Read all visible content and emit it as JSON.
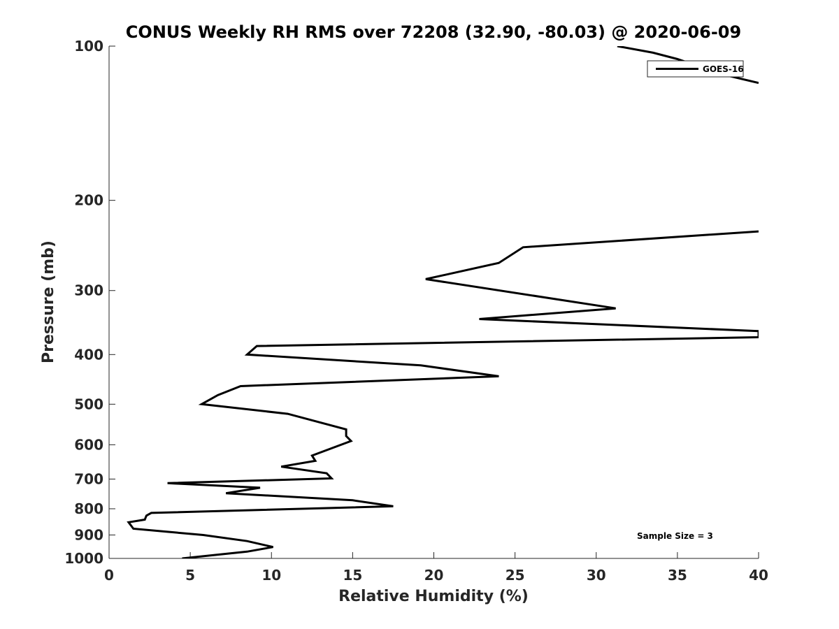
{
  "chart_data": {
    "type": "line",
    "title": "CONUS Weekly RH RMS over 72208 (32.90, -80.03) @ 2020-06-09",
    "xlabel": "Relative Humidity (%)",
    "ylabel": "Pressure (mb)",
    "xlim": [
      0,
      40
    ],
    "ylim": [
      100,
      1000
    ],
    "yscale": "log",
    "y_reversed": true,
    "xticks": [
      0,
      5,
      10,
      15,
      20,
      25,
      30,
      35,
      40
    ],
    "yticks": [
      100,
      200,
      300,
      400,
      500,
      600,
      700,
      800,
      900,
      1000
    ],
    "grid": false,
    "legend_position": "top-right",
    "annotation": "Sample Size = 3",
    "line_color": "#000000",
    "series": [
      {
        "name": "GOES-16",
        "points": [
          [
            4.5,
            1000
          ],
          [
            8.5,
            970
          ],
          [
            10.1,
            950
          ],
          [
            8.5,
            925
          ],
          [
            5.8,
            900
          ],
          [
            1.5,
            875
          ],
          [
            1.2,
            850
          ],
          [
            2.2,
            840
          ],
          [
            2.3,
            825
          ],
          [
            2.6,
            815
          ],
          [
            17.5,
            791
          ],
          [
            15.0,
            770
          ],
          [
            7.2,
            746
          ],
          [
            9.3,
            728
          ],
          [
            3.6,
            713
          ],
          [
            13.7,
            698
          ],
          [
            13.4,
            682
          ],
          [
            10.6,
            662
          ],
          [
            12.7,
            645
          ],
          [
            12.5,
            630
          ],
          [
            14.9,
            590
          ],
          [
            14.6,
            577
          ],
          [
            14.6,
            560
          ],
          [
            11.0,
            522
          ],
          [
            5.7,
            500
          ],
          [
            6.7,
            480
          ],
          [
            8.1,
            461
          ],
          [
            24.0,
            441
          ],
          [
            19.2,
            420
          ],
          [
            8.5,
            400
          ],
          [
            9.1,
            385
          ],
          [
            40.0,
            370
          ],
          [
            40.0,
            360
          ],
          [
            22.8,
            341
          ],
          [
            31.2,
            325
          ],
          [
            19.5,
            285
          ],
          [
            24.0,
            265
          ],
          [
            25.5,
            247
          ],
          [
            40.0,
            230
          ]
        ]
      },
      {
        "name": "GOES-16",
        "points": [
          [
            31.3,
            100
          ],
          [
            33.5,
            103
          ],
          [
            35.0,
            106
          ],
          [
            36.5,
            110
          ],
          [
            38.0,
            114
          ],
          [
            40.0,
            118
          ]
        ]
      }
    ]
  }
}
